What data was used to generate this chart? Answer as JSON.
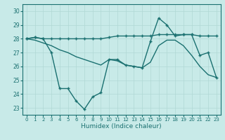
{
  "xlabel": "Humidex (Indice chaleur)",
  "background_color": "#c8eae8",
  "grid_color": "#b0d8d4",
  "line_color": "#1a7070",
  "x_values": [
    0,
    1,
    2,
    3,
    4,
    5,
    6,
    7,
    8,
    9,
    10,
    11,
    12,
    13,
    14,
    15,
    16,
    17,
    18,
    19,
    20,
    21,
    22,
    23
  ],
  "line_max": [
    28.0,
    28.1,
    28.0,
    28.0,
    28.0,
    28.0,
    28.0,
    28.0,
    28.0,
    28.0,
    28.1,
    28.2,
    28.2,
    28.2,
    28.2,
    28.2,
    28.3,
    28.3,
    28.3,
    28.3,
    28.3,
    28.2,
    28.2,
    28.2
  ],
  "line_actual": [
    28.0,
    28.1,
    28.0,
    27.0,
    24.4,
    24.4,
    23.5,
    22.9,
    23.8,
    24.1,
    26.5,
    26.5,
    26.1,
    26.0,
    25.9,
    27.8,
    29.5,
    29.0,
    28.2,
    28.3,
    28.3,
    26.8,
    27.0,
    25.2
  ],
  "line_avg": [
    28.0,
    27.9,
    27.7,
    27.5,
    27.2,
    27.0,
    26.7,
    26.5,
    26.3,
    26.1,
    26.5,
    26.4,
    26.1,
    26.0,
    25.9,
    26.3,
    27.5,
    27.9,
    27.9,
    27.5,
    26.8,
    26.0,
    25.4,
    25.2
  ],
  "ylim": [
    22.5,
    30.5
  ],
  "xlim": [
    -0.5,
    23.5
  ],
  "yticks": [
    23,
    24,
    25,
    26,
    27,
    28,
    29,
    30
  ],
  "xticks": [
    0,
    1,
    2,
    3,
    4,
    5,
    6,
    7,
    8,
    9,
    10,
    11,
    12,
    13,
    14,
    15,
    16,
    17,
    18,
    19,
    20,
    21,
    22,
    23
  ],
  "marker": "+",
  "markersize": 3.5,
  "linewidth": 1.0,
  "tick_fontsize": 5.0,
  "xlabel_fontsize": 6.5
}
